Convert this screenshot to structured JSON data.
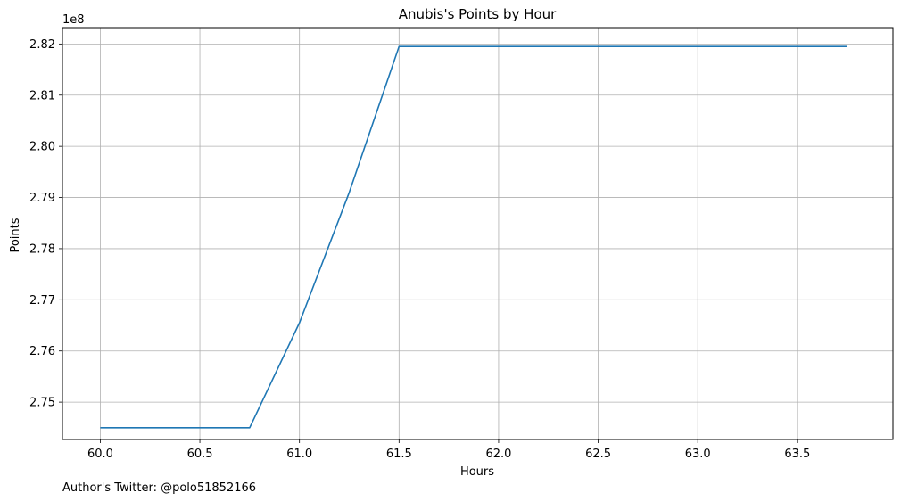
{
  "chart_data": {
    "type": "line",
    "title": "Anubis's Points by Hour",
    "xlabel": "Hours",
    "ylabel": "Points",
    "offset_text": "1e8",
    "footer": "Author's Twitter: @polo51852166",
    "grid": true,
    "line_color": "#1f77b4",
    "xlim": [
      59.81,
      63.98
    ],
    "ylim": [
      2.7427,
      2.8232
    ],
    "x_ticks": [
      60.0,
      60.5,
      61.0,
      61.5,
      62.0,
      62.5,
      63.0,
      63.5
    ],
    "x_tick_labels": [
      "60.0",
      "60.5",
      "61.0",
      "61.5",
      "62.0",
      "62.5",
      "63.0",
      "63.5"
    ],
    "y_ticks": [
      2.75,
      2.76,
      2.77,
      2.78,
      2.79,
      2.8,
      2.81,
      2.82
    ],
    "y_tick_labels": [
      "2.75",
      "2.76",
      "2.77",
      "2.78",
      "2.79",
      "2.80",
      "2.81",
      "2.82"
    ],
    "series": [
      {
        "x": [
          60.0,
          60.25,
          60.5,
          60.75,
          61.0,
          61.25,
          61.5,
          61.75,
          62.0,
          62.25,
          62.5,
          62.75,
          63.0,
          63.25,
          63.5,
          63.75
        ],
        "y": [
          2.745,
          2.745,
          2.745,
          2.745,
          2.7655,
          2.791,
          2.8195,
          2.8195,
          2.8195,
          2.8195,
          2.8195,
          2.8195,
          2.8195,
          2.8195,
          2.8195,
          2.8195
        ]
      }
    ]
  }
}
